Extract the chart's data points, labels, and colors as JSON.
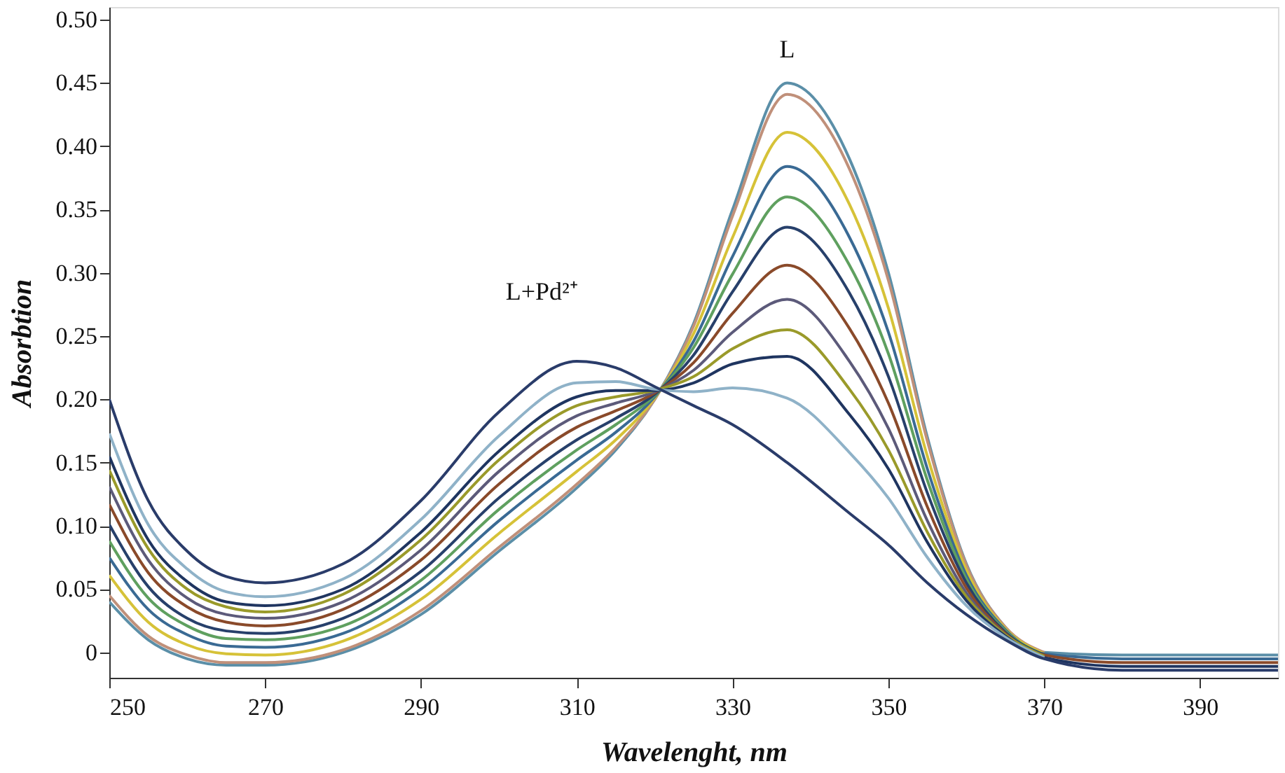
{
  "chart_data": {
    "type": "line",
    "xlabel": "Wavelenght, nm",
    "ylabel": "Absorbtion",
    "x": [
      250,
      255,
      260,
      265,
      270,
      280,
      290,
      300,
      310,
      315,
      320,
      325,
      330,
      337,
      345,
      350,
      355,
      360,
      365,
      370,
      380,
      390,
      400
    ],
    "xlim": [
      250,
      400
    ],
    "xticks": [
      250,
      270,
      290,
      310,
      330,
      350,
      370,
      390
    ],
    "ylim": [
      -0.02,
      0.51
    ],
    "yticks": [
      {
        "value": 0,
        "label": "0"
      },
      {
        "value": 0.05,
        "label": "0.05"
      },
      {
        "value": 0.1,
        "label": "0.10"
      },
      {
        "value": 0.15,
        "label": "0.15"
      },
      {
        "value": 0.2,
        "label": "0.20"
      },
      {
        "value": 0.25,
        "label": "0.25"
      },
      {
        "value": 0.3,
        "label": "0.30"
      },
      {
        "value": 0.35,
        "label": "0.35"
      },
      {
        "value": 0.4,
        "label": "0.40"
      },
      {
        "value": 0.45,
        "label": "0.45"
      },
      {
        "value": 0.5,
        "label": "0.50"
      }
    ],
    "grid": false,
    "legend": false,
    "marker": "none",
    "line_style": "solid",
    "series": [
      {
        "color": "#5b8fa8",
        "values": [
          0.04,
          0.01,
          -0.005,
          -0.01,
          -0.01,
          0.0,
          0.03,
          0.08,
          0.13,
          0.16,
          0.2,
          0.26,
          0.35,
          0.45,
          0.39,
          0.3,
          0.17,
          0.07,
          0.02,
          0.0,
          -0.002,
          -0.002,
          -0.002
        ]
      },
      {
        "color": "#c0907a",
        "x": [
          250,
          255,
          260,
          265,
          270,
          280,
          290,
          300,
          310,
          315,
          320,
          325,
          330,
          337,
          345,
          350,
          355,
          360,
          365,
          370
        ],
        "values": [
          0.045,
          0.013,
          -0.002,
          -0.008,
          -0.008,
          0.002,
          0.033,
          0.083,
          0.133,
          0.162,
          0.2,
          0.258,
          0.345,
          0.441,
          0.382,
          0.294,
          0.167,
          0.069,
          0.02,
          0.0
        ]
      },
      {
        "color": "#d6c238",
        "x": [
          250,
          255,
          260,
          265,
          270,
          280,
          290,
          300,
          310,
          315,
          320,
          325,
          330,
          337,
          345,
          350,
          355,
          360,
          365,
          370
        ],
        "values": [
          0.061,
          0.024,
          0.006,
          -0.001,
          -0.002,
          0.009,
          0.042,
          0.094,
          0.143,
          0.168,
          0.201,
          0.252,
          0.328,
          0.411,
          0.354,
          0.272,
          0.155,
          0.065,
          0.019,
          -0.001
        ]
      },
      {
        "color": "#3a6a94",
        "values": [
          0.075,
          0.034,
          0.014,
          0.005,
          0.004,
          0.015,
          0.05,
          0.104,
          0.152,
          0.174,
          0.202,
          0.246,
          0.313,
          0.384,
          0.328,
          0.253,
          0.145,
          0.061,
          0.018,
          -0.001,
          -0.005,
          -0.005,
          -0.005
        ]
      },
      {
        "color": "#5fa05f",
        "x": [
          250,
          255,
          260,
          265,
          270,
          280,
          290,
          300,
          310,
          315,
          320,
          325,
          330,
          337,
          345,
          350,
          355,
          360,
          365,
          370
        ],
        "values": [
          0.088,
          0.043,
          0.021,
          0.011,
          0.01,
          0.021,
          0.057,
          0.113,
          0.16,
          0.18,
          0.203,
          0.241,
          0.299,
          0.36,
          0.306,
          0.236,
          0.136,
          0.058,
          0.017,
          -0.002
        ]
      },
      {
        "color": "#27406b",
        "x": [
          250,
          255,
          260,
          265,
          270,
          280,
          290,
          300,
          310,
          315,
          320,
          325,
          330,
          337,
          345,
          350,
          355,
          360,
          365,
          370
        ],
        "values": [
          0.101,
          0.052,
          0.027,
          0.017,
          0.015,
          0.027,
          0.064,
          0.122,
          0.168,
          0.185,
          0.204,
          0.235,
          0.285,
          0.336,
          0.284,
          0.218,
          0.126,
          0.055,
          0.016,
          -0.002
        ]
      },
      {
        "color": "#8a4a2a",
        "values": [
          0.117,
          0.063,
          0.036,
          0.024,
          0.021,
          0.034,
          0.073,
          0.133,
          0.178,
          0.191,
          0.205,
          0.229,
          0.268,
          0.306,
          0.256,
          0.197,
          0.115,
          0.051,
          0.015,
          -0.002,
          -0.008,
          -0.008,
          -0.008
        ]
      },
      {
        "color": "#5c5a7a",
        "x": [
          250,
          255,
          260,
          265,
          270,
          280,
          290,
          300,
          310,
          315,
          320,
          325,
          330,
          337,
          345,
          350,
          355,
          360,
          365,
          370
        ],
        "values": [
          0.131,
          0.073,
          0.043,
          0.03,
          0.027,
          0.04,
          0.081,
          0.143,
          0.187,
          0.197,
          0.206,
          0.223,
          0.253,
          0.279,
          0.23,
          0.177,
          0.104,
          0.047,
          0.014,
          -0.003
        ]
      },
      {
        "color": "#9a9a2a",
        "x": [
          250,
          255,
          260,
          265,
          270,
          280,
          290,
          300,
          310,
          315,
          320,
          325,
          330,
          337,
          345,
          350,
          355,
          360,
          365,
          370
        ],
        "values": [
          0.144,
          0.082,
          0.05,
          0.036,
          0.032,
          0.046,
          0.089,
          0.152,
          0.195,
          0.202,
          0.207,
          0.218,
          0.24,
          0.255,
          0.208,
          0.16,
          0.095,
          0.044,
          0.014,
          -0.003
        ]
      },
      {
        "color": "#1f3560",
        "values": [
          0.155,
          0.089,
          0.056,
          0.04,
          0.037,
          0.05,
          0.095,
          0.159,
          0.202,
          0.207,
          0.207,
          0.213,
          0.228,
          0.234,
          0.188,
          0.145,
          0.087,
          0.041,
          0.013,
          -0.004,
          -0.011,
          -0.011,
          -0.011
        ]
      },
      {
        "color": "#8fb2c8",
        "x": [
          250,
          255,
          260,
          265,
          270,
          280,
          290,
          300,
          310,
          315,
          320,
          325,
          330,
          337,
          345,
          350,
          355,
          360,
          365,
          370
        ],
        "values": [
          0.173,
          0.101,
          0.066,
          0.048,
          0.044,
          0.058,
          0.105,
          0.171,
          0.213,
          0.214,
          0.208,
          0.206,
          0.209,
          0.201,
          0.158,
          0.122,
          0.075,
          0.037,
          0.012,
          -0.004
        ]
      },
      {
        "color": "#2a3c6a",
        "values": [
          0.2,
          0.12,
          0.08,
          0.06,
          0.055,
          0.07,
          0.12,
          0.19,
          0.23,
          0.225,
          0.21,
          0.195,
          0.18,
          0.15,
          0.11,
          0.085,
          0.055,
          0.03,
          0.01,
          -0.005,
          -0.014,
          -0.014,
          -0.014
        ]
      }
    ],
    "annotations": [
      "L",
      "L+Pd²⁺"
    ]
  }
}
